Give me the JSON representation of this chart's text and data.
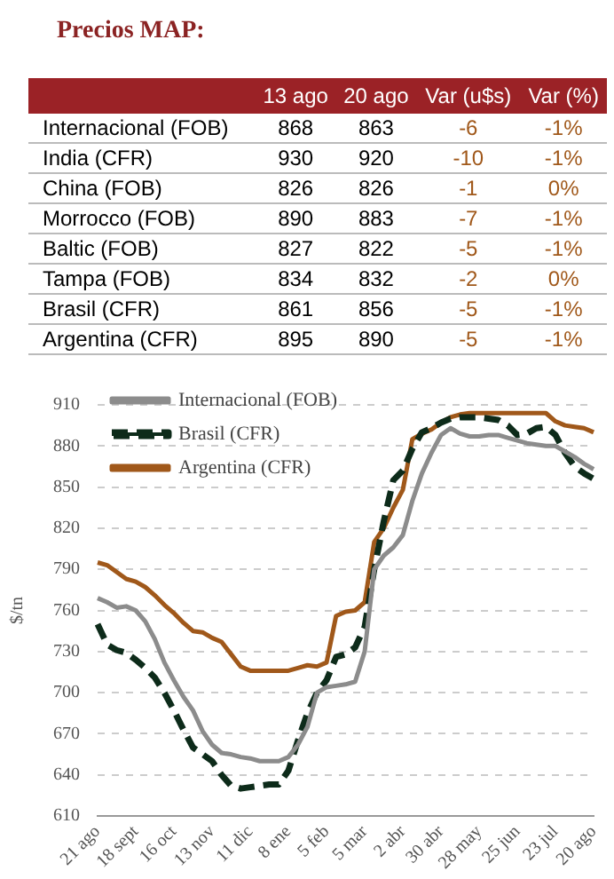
{
  "chart_data": [
    {
      "type": "heatmap",
      "title": "Precios MAP:",
      "categories": [
        "13 ago",
        "20 ago",
        "Var (u$s)",
        "Var (%)"
      ],
      "y_categories": [
        "Internacional (FOB)",
        "India (CFR)",
        "China (FOB)",
        "Morrocco (FOB)",
        "Baltic (FOB)",
        "Tampa (FOB)",
        "Brasil (CFR)",
        "Argentina (CFR)"
      ],
      "cells": [
        [
          868,
          863,
          -6,
          -1
        ],
        [
          930,
          920,
          -10,
          -1
        ],
        [
          826,
          826,
          -1,
          0
        ],
        [
          890,
          883,
          -7,
          -1
        ],
        [
          827,
          822,
          -5,
          -1
        ],
        [
          834,
          832,
          -2,
          0
        ],
        [
          861,
          856,
          -5,
          -1
        ],
        [
          895,
          890,
          -5,
          -1
        ]
      ],
      "cell_labels": [
        [
          "868",
          "863",
          "-6",
          "-1%"
        ],
        [
          "930",
          "920",
          "-10",
          "-1%"
        ],
        [
          "826",
          "826",
          "-1",
          "0%"
        ],
        [
          "890",
          "883",
          "-7",
          "-1%"
        ],
        [
          "827",
          "822",
          "-5",
          "-1%"
        ],
        [
          "834",
          "832",
          "-2",
          "0%"
        ],
        [
          "861",
          "856",
          "-5",
          "-1%"
        ],
        [
          "895",
          "890",
          "-5",
          "-1%"
        ]
      ]
    },
    {
      "type": "line",
      "ylabel": "$/tn",
      "legend": "top left",
      "grid": "y",
      "ylim": [
        610,
        910
      ],
      "yticks": [
        610,
        640,
        670,
        700,
        730,
        760,
        790,
        820,
        850,
        880,
        910
      ],
      "categories": [
        "21 ago",
        null,
        null,
        null,
        "18 sept",
        null,
        null,
        null,
        "16 oct",
        null,
        null,
        null,
        "13 nov",
        null,
        null,
        null,
        "11 dic",
        null,
        null,
        null,
        "8 ene",
        null,
        null,
        null,
        "5 feb",
        null,
        null,
        null,
        "5 mar",
        null,
        null,
        null,
        "2 abr",
        null,
        null,
        null,
        "30 abr",
        null,
        null,
        null,
        "28 may",
        null,
        null,
        null,
        "25 jun",
        null,
        null,
        null,
        "23 jul",
        null,
        null,
        null,
        "20 ago"
      ],
      "series": [
        {
          "name": "Internacional (FOB)",
          "color": "#8c8c8c",
          "line_style": "solid",
          "values": [
            769,
            766,
            762,
            763,
            760,
            752,
            739,
            722,
            709,
            697,
            687,
            672,
            662,
            656,
            655,
            653,
            652,
            650,
            650,
            650,
            653,
            662,
            675,
            700,
            704,
            705,
            706,
            708,
            730,
            790,
            800,
            806,
            815,
            840,
            860,
            875,
            888,
            893,
            889,
            887,
            887,
            888,
            888,
            886,
            884,
            882,
            881,
            880,
            880,
            876,
            872,
            867,
            863
          ]
        },
        {
          "name": "Brasil (CFR)",
          "color": "#0d2b1a",
          "line_style": "dashed",
          "values": [
            750,
            735,
            731,
            729,
            724,
            718,
            711,
            700,
            687,
            673,
            660,
            655,
            650,
            640,
            632,
            630,
            631,
            632,
            633,
            633,
            643,
            665,
            685,
            700,
            709,
            726,
            728,
            733,
            748,
            790,
            825,
            855,
            862,
            878,
            890,
            893,
            897,
            900,
            901,
            901,
            901,
            900,
            899,
            895,
            888,
            889,
            893,
            894,
            888,
            875,
            865,
            860,
            856
          ]
        },
        {
          "name": "Argentina (CFR)",
          "color": "#a0581a",
          "line_style": "solid",
          "values": [
            795,
            793,
            788,
            783,
            781,
            777,
            771,
            764,
            758,
            751,
            745,
            744,
            740,
            737,
            728,
            719,
            716,
            716,
            716,
            716,
            716,
            718,
            720,
            719,
            722,
            756,
            759,
            760,
            766,
            810,
            820,
            835,
            848,
            885,
            889,
            892,
            897,
            901,
            903,
            904,
            904,
            904,
            904,
            904,
            904,
            904,
            904,
            904,
            898,
            895,
            894,
            893,
            890
          ]
        }
      ]
    }
  ]
}
